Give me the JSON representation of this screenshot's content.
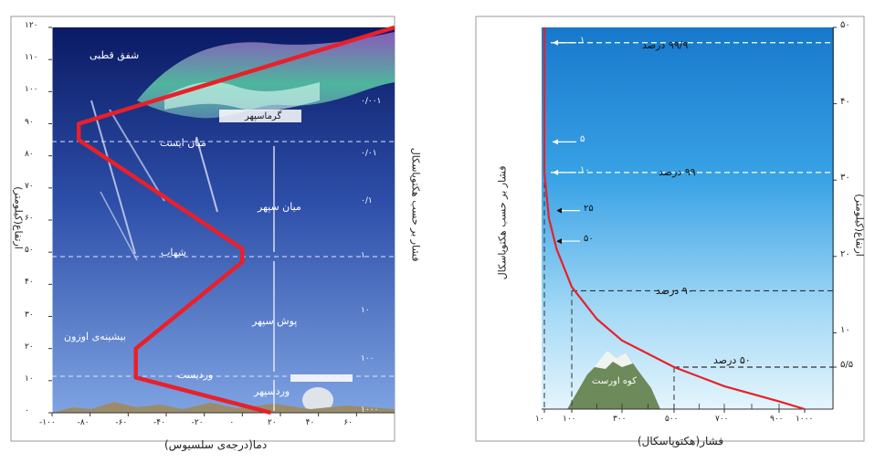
{
  "left_panel": {
    "ylabel": "ارتفاع(کیلومتر)",
    "xlabel": "دما(درجه‌ی سلسیوس)",
    "right_axis_label": "فشار بر حسب هکتوپاسکال",
    "y_ticks": [
      "۰",
      "۱۰",
      "۲۰",
      "۳۰",
      "۴۰",
      "۵۰",
      "۶۰",
      "۷۰",
      "۸۰",
      "۹۰",
      "۱۰۰",
      "۱۱۰",
      "۱۲۰"
    ],
    "x_ticks": [
      "-۱۰۰",
      "-۸۰",
      "-۶۰",
      "-۴۰",
      "-۲۰",
      "۰",
      "۲۰",
      "۴۰",
      "۶۰"
    ],
    "pressure_ticks": [
      "۱۰۰۰",
      "۱۰۰",
      "۱۰",
      "۱",
      "۰/۱",
      "۰/۰۱",
      "۰/۰۰۱"
    ],
    "layers": {
      "thermosphere": "گرماسپهر",
      "mesopause": "میان ایست",
      "mesosphere": "میان سپهر",
      "stratopause": "شهاب",
      "stratosphere": "پوش سپهر",
      "tropopause": "وردیست",
      "troposphere": "وردسپهر"
    },
    "annotations": {
      "aurora": "شفق قطبی",
      "ozone": "بیشینه‌ی اوزون"
    }
  },
  "right_panel": {
    "ylabel": "ارتفاع(کیلومتر)",
    "xlabel": "فشار(هکتوپاسکال)",
    "left_axis_label": "فشار بر حسب هکتوپاسکال",
    "y_ticks": [
      "۵/۵",
      "۱۰",
      "۲۰",
      "۳۰",
      "۴۰",
      "۵۰"
    ],
    "x_ticks": [
      "۱۰",
      "۱۰۰",
      "۳۰۰",
      "۵۰۰",
      "۷۰۰",
      "۹۰۰",
      "۱۰۰۰"
    ],
    "pressure_markers": [
      "۱",
      "۵",
      "۱۰",
      "۲۵",
      "۵۰"
    ],
    "percent_labels": [
      "۹۹/۹ درصد",
      "۹۹ درصد",
      "۹۰ درصد",
      "۵۰ درصد"
    ],
    "mountain_label": "کوه اورست"
  },
  "chart_data": [
    {
      "type": "line",
      "xlabel": "دما(درجه‌ی سلسیوس)",
      "ylabel": "ارتفاع(کیلومتر)",
      "xlim": [
        -100,
        80
      ],
      "ylim": [
        0,
        120
      ],
      "series": [
        {
          "x": [
            15,
            -56,
            -56,
            0,
            0,
            -86,
            -86,
            80
          ],
          "y": [
            0,
            11,
            20,
            47,
            51,
            85,
            90,
            120
          ]
        }
      ]
    },
    {
      "type": "line",
      "xlabel": "فشار(هکتوپاسکال)",
      "ylabel": "ارتفاع(کیلومتر)",
      "xlim": [
        10,
        1000
      ],
      "ylim": [
        0,
        50
      ],
      "series": [
        {
          "x": [
            1000,
            900,
            700,
            500,
            300,
            200,
            100,
            50,
            25,
            10
          ],
          "y": [
            0,
            1,
            3,
            5.5,
            9,
            11.8,
            16,
            21,
            25,
            31
          ]
        }
      ]
    }
  ],
  "colors": {
    "curve": "#e8202a",
    "left_bg_top": "#0d1f6e",
    "left_bg_bottom": "#6f95da",
    "right_bg_top": "#1b88d6",
    "right_bg_bottom": "#d6eefa"
  }
}
